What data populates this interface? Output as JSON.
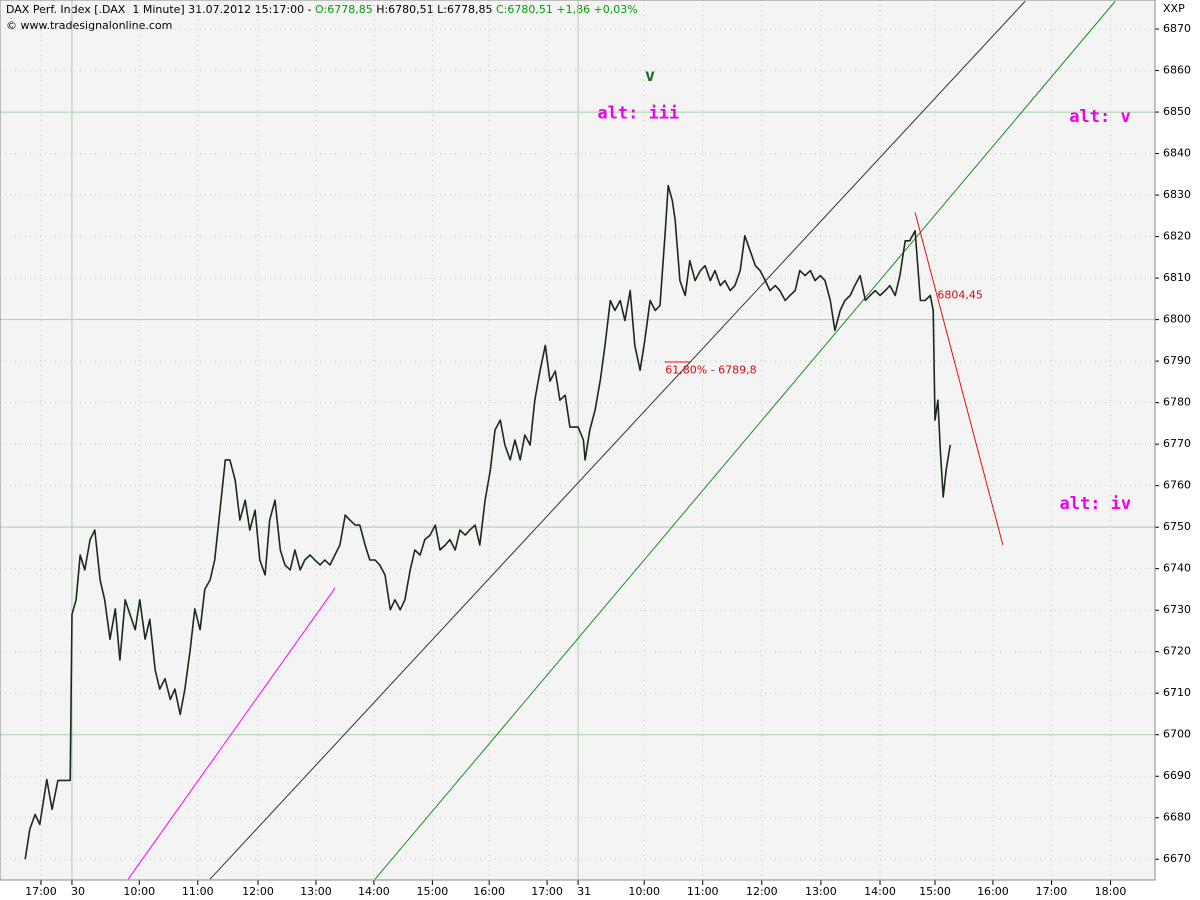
{
  "chart_data": {
    "type": "line",
    "header": [
      "DAX Perf. Index [.DAX  1 Minute] 31.07.2012 15:17:00 - ",
      "O:6778,85",
      " H:6780,51 L:6778,85 ",
      "C:6780,51 +1,86 +0,03%"
    ],
    "header_colors": [
      "#000000",
      "#00a000",
      "#000000",
      "#00a000"
    ],
    "source": "© www.tradesignalonline.com",
    "symbol": "XXP",
    "grid": true,
    "major_yticks": [
      6700,
      6750,
      6800,
      6850
    ],
    "ylim": [
      6665,
      6877
    ],
    "yticks": [
      6670,
      6680,
      6690,
      6700,
      6710,
      6720,
      6730,
      6740,
      6750,
      6760,
      6770,
      6780,
      6790,
      6800,
      6810,
      6820,
      6830,
      6840,
      6850,
      6860,
      6870
    ],
    "xlim": [
      -1.23,
      18.51
    ],
    "xticks": [
      {
        "value": -0.53,
        "label": "17:00"
      },
      {
        "value": 0,
        "label": "30"
      },
      {
        "value": 1.15,
        "label": "10:00"
      },
      {
        "value": 2.15,
        "label": "11:00"
      },
      {
        "value": 3.18,
        "label": "12:00"
      },
      {
        "value": 4.17,
        "label": "13:00"
      },
      {
        "value": 5.16,
        "label": "14:00"
      },
      {
        "value": 6.16,
        "label": "15:00"
      },
      {
        "value": 7.13,
        "label": "16:00"
      },
      {
        "value": 8.12,
        "label": "17:00"
      },
      {
        "value": 8.65,
        "label": "31"
      },
      {
        "value": 9.78,
        "label": "10:00"
      },
      {
        "value": 10.78,
        "label": "11:00"
      },
      {
        "value": 11.79,
        "label": "12:00"
      },
      {
        "value": 12.8,
        "label": "13:00"
      },
      {
        "value": 13.81,
        "label": "14:00"
      },
      {
        "value": 14.75,
        "label": "15:00"
      },
      {
        "value": 15.74,
        "label": "16:00"
      },
      {
        "value": 16.74,
        "label": "17:00"
      },
      {
        "value": 17.75,
        "label": "18:00"
      }
    ],
    "day_boundaries": [
      0,
      8.65
    ],
    "series": [
      {
        "name": "DAX",
        "color": "#1a2a1a",
        "x": [
          -0.8,
          -0.72,
          -0.63,
          -0.55,
          -0.43,
          -0.34,
          -0.24,
          -0.03,
          0,
          0.07,
          0.14,
          0.22,
          0.31,
          0.39,
          0.48,
          0.56,
          0.65,
          0.74,
          0.82,
          0.91,
          0.99,
          1.08,
          1.16,
          1.25,
          1.33,
          1.42,
          1.5,
          1.59,
          1.68,
          1.76,
          1.85,
          1.93,
          2.02,
          2.1,
          2.19,
          2.27,
          2.36,
          2.44,
          2.53,
          2.62,
          2.7,
          2.79,
          2.87,
          2.96,
          3.04,
          3.13,
          3.21,
          3.3,
          3.38,
          3.47,
          3.56,
          3.64,
          3.73,
          3.81,
          3.9,
          3.98,
          4.07,
          4.15,
          4.24,
          4.32,
          4.41,
          4.58,
          4.67,
          4.75,
          4.84,
          4.92,
          5.01,
          5.09,
          5.18,
          5.26,
          5.35,
          5.44,
          5.52,
          5.61,
          5.69,
          5.78,
          5.86,
          5.95,
          6.03,
          6.12,
          6.21,
          6.29,
          6.38,
          6.46,
          6.55,
          6.63,
          6.72,
          6.8,
          6.89,
          6.97,
          7.06,
          7.15,
          7.23,
          7.32,
          7.4,
          7.49,
          7.57,
          7.66,
          7.74,
          7.83,
          7.91,
          8.0,
          8.09,
          8.17,
          8.26,
          8.34,
          8.43,
          8.51,
          8.65,
          8.74,
          8.77,
          8.85,
          8.94,
          9.03,
          9.11,
          9.2,
          9.28,
          9.37,
          9.45,
          9.54,
          9.62,
          9.71,
          9.79,
          9.88,
          9.97,
          10.05,
          10.14,
          10.19,
          10.26,
          10.31,
          10.39,
          10.48,
          10.56,
          10.65,
          10.74,
          10.82,
          10.91,
          10.99,
          11.08,
          11.16,
          11.25,
          11.33,
          11.42,
          11.5,
          11.59,
          11.68,
          11.76,
          11.85,
          11.93,
          12.02,
          12.1,
          12.19,
          12.27,
          12.36,
          12.44,
          12.53,
          12.62,
          12.7,
          12.79,
          12.87,
          12.96,
          13.04,
          13.13,
          13.21,
          13.3,
          13.38,
          13.47,
          13.56,
          13.64,
          13.73,
          13.81,
          13.9,
          13.98,
          14.07,
          14.15,
          14.24,
          14.32,
          14.41,
          14.5,
          14.58,
          14.67,
          14.72,
          14.75,
          14.8,
          14.84,
          14.89,
          14.94,
          15.01
        ],
        "values": [
          6670,
          6677.2,
          6680.8,
          6678.4,
          6689.2,
          6682,
          6689,
          6689,
          6729,
          6732.5,
          6743.3,
          6739.7,
          6747,
          6749.3,
          6737.3,
          6732.5,
          6723,
          6730.3,
          6718,
          6732.5,
          6729,
          6725.3,
          6732.5,
          6723,
          6727.8,
          6715.7,
          6711,
          6713.5,
          6708.5,
          6711,
          6704.9,
          6711,
          6720.5,
          6730.3,
          6725.3,
          6735,
          6737.3,
          6742.1,
          6754.1,
          6766.2,
          6766.2,
          6761.3,
          6751.7,
          6756.5,
          6749.3,
          6754.1,
          6742.1,
          6738.5,
          6751.7,
          6756.5,
          6744.5,
          6740.9,
          6739.7,
          6744.5,
          6739.7,
          6742.1,
          6743.3,
          6742.1,
          6740.9,
          6742.1,
          6740.9,
          6745.7,
          6752.9,
          6751.7,
          6750.5,
          6750.5,
          6745.7,
          6742.1,
          6742.1,
          6740.9,
          6738.5,
          6730.1,
          6732.5,
          6730.1,
          6732.5,
          6739.7,
          6744.5,
          6743.3,
          6747,
          6748.1,
          6750.5,
          6744.5,
          6745.7,
          6747,
          6744.5,
          6749.3,
          6748.1,
          6749.3,
          6750.5,
          6745.7,
          6756.5,
          6763.7,
          6773.4,
          6775.8,
          6769.8,
          6766.2,
          6771,
          6766.2,
          6772.2,
          6769.8,
          6780.6,
          6787.8,
          6793.8,
          6785.2,
          6787.6,
          6780.6,
          6781.8,
          6774.1,
          6774.1,
          6771,
          6766.2,
          6773.4,
          6778.2,
          6785.4,
          6793.8,
          6804.6,
          6802.2,
          6804.6,
          6799.8,
          6807,
          6793.8,
          6787.8,
          6795,
          6804.6,
          6802.2,
          6803.4,
          6821.4,
          6832.3,
          6828.7,
          6823.9,
          6809.4,
          6805.8,
          6814.2,
          6809.4,
          6811.8,
          6813,
          6809.4,
          6811.8,
          6808.2,
          6809.4,
          6807,
          6808.2,
          6811.8,
          6820.2,
          6816.6,
          6813,
          6811.8,
          6809.4,
          6807,
          6808.2,
          6807,
          6804.6,
          6805.8,
          6807,
          6811.8,
          6810.6,
          6811.8,
          6809.4,
          6810.6,
          6809.4,
          6804.6,
          6797.4,
          6802.2,
          6804.6,
          6805.8,
          6808.2,
          6810.6,
          6804.6,
          6805.8,
          6807,
          6805.8,
          6807,
          6808.2,
          6805.8,
          6810.6,
          6819,
          6819,
          6821.4,
          6804.6,
          6804.6,
          6805.8,
          6802.2,
          6775.8,
          6780.6,
          6768.6,
          6757.3,
          6763.7,
          6769.8
        ]
      }
    ],
    "trendlines": [
      {
        "color": "#333333",
        "points": [
          [
            2.36,
            6665.2
          ],
          [
            16.29,
            6876.7
          ]
        ]
      },
      {
        "color": "#1f8a1f",
        "points": [
          [
            5.18,
            6665.2
          ],
          [
            17.83,
            6876.7
          ]
        ]
      },
      {
        "color": "#ff00ff",
        "points": [
          [
            0.96,
            6665.2
          ],
          [
            4.5,
            6735.4
          ]
        ]
      },
      {
        "color": "#e01010",
        "points": [
          [
            14.41,
            6825.8
          ],
          [
            15.91,
            6745.7
          ]
        ]
      },
      {
        "color": "#e01010",
        "points": [
          [
            10.13,
            6789.8
          ],
          [
            10.56,
            6789.8
          ]
        ]
      }
    ],
    "annotations": [
      {
        "text": "v",
        "x": 9.88,
        "y": 6858.7,
        "color": "#1f6a1f",
        "big": true
      },
      {
        "text": "alt: iii",
        "x": 9.68,
        "y": 6849.6,
        "color": "#ee00ee",
        "big": true
      },
      {
        "text": "alt: v",
        "x": 17.57,
        "y": 6848.8,
        "color": "#ee00ee",
        "big": true
      },
      {
        "text": "alt: iv",
        "x": 17.49,
        "y": 6755.6,
        "color": "#ee00ee",
        "big": true
      },
      {
        "text": "61,80% - 6789,8",
        "x": 10.14,
        "y": 6787.8,
        "color": "#cc1010",
        "big": false
      },
      {
        "text": "6804,45",
        "x": 14.79,
        "y": 6805.8,
        "color": "#cc1010",
        "big": false
      }
    ]
  }
}
